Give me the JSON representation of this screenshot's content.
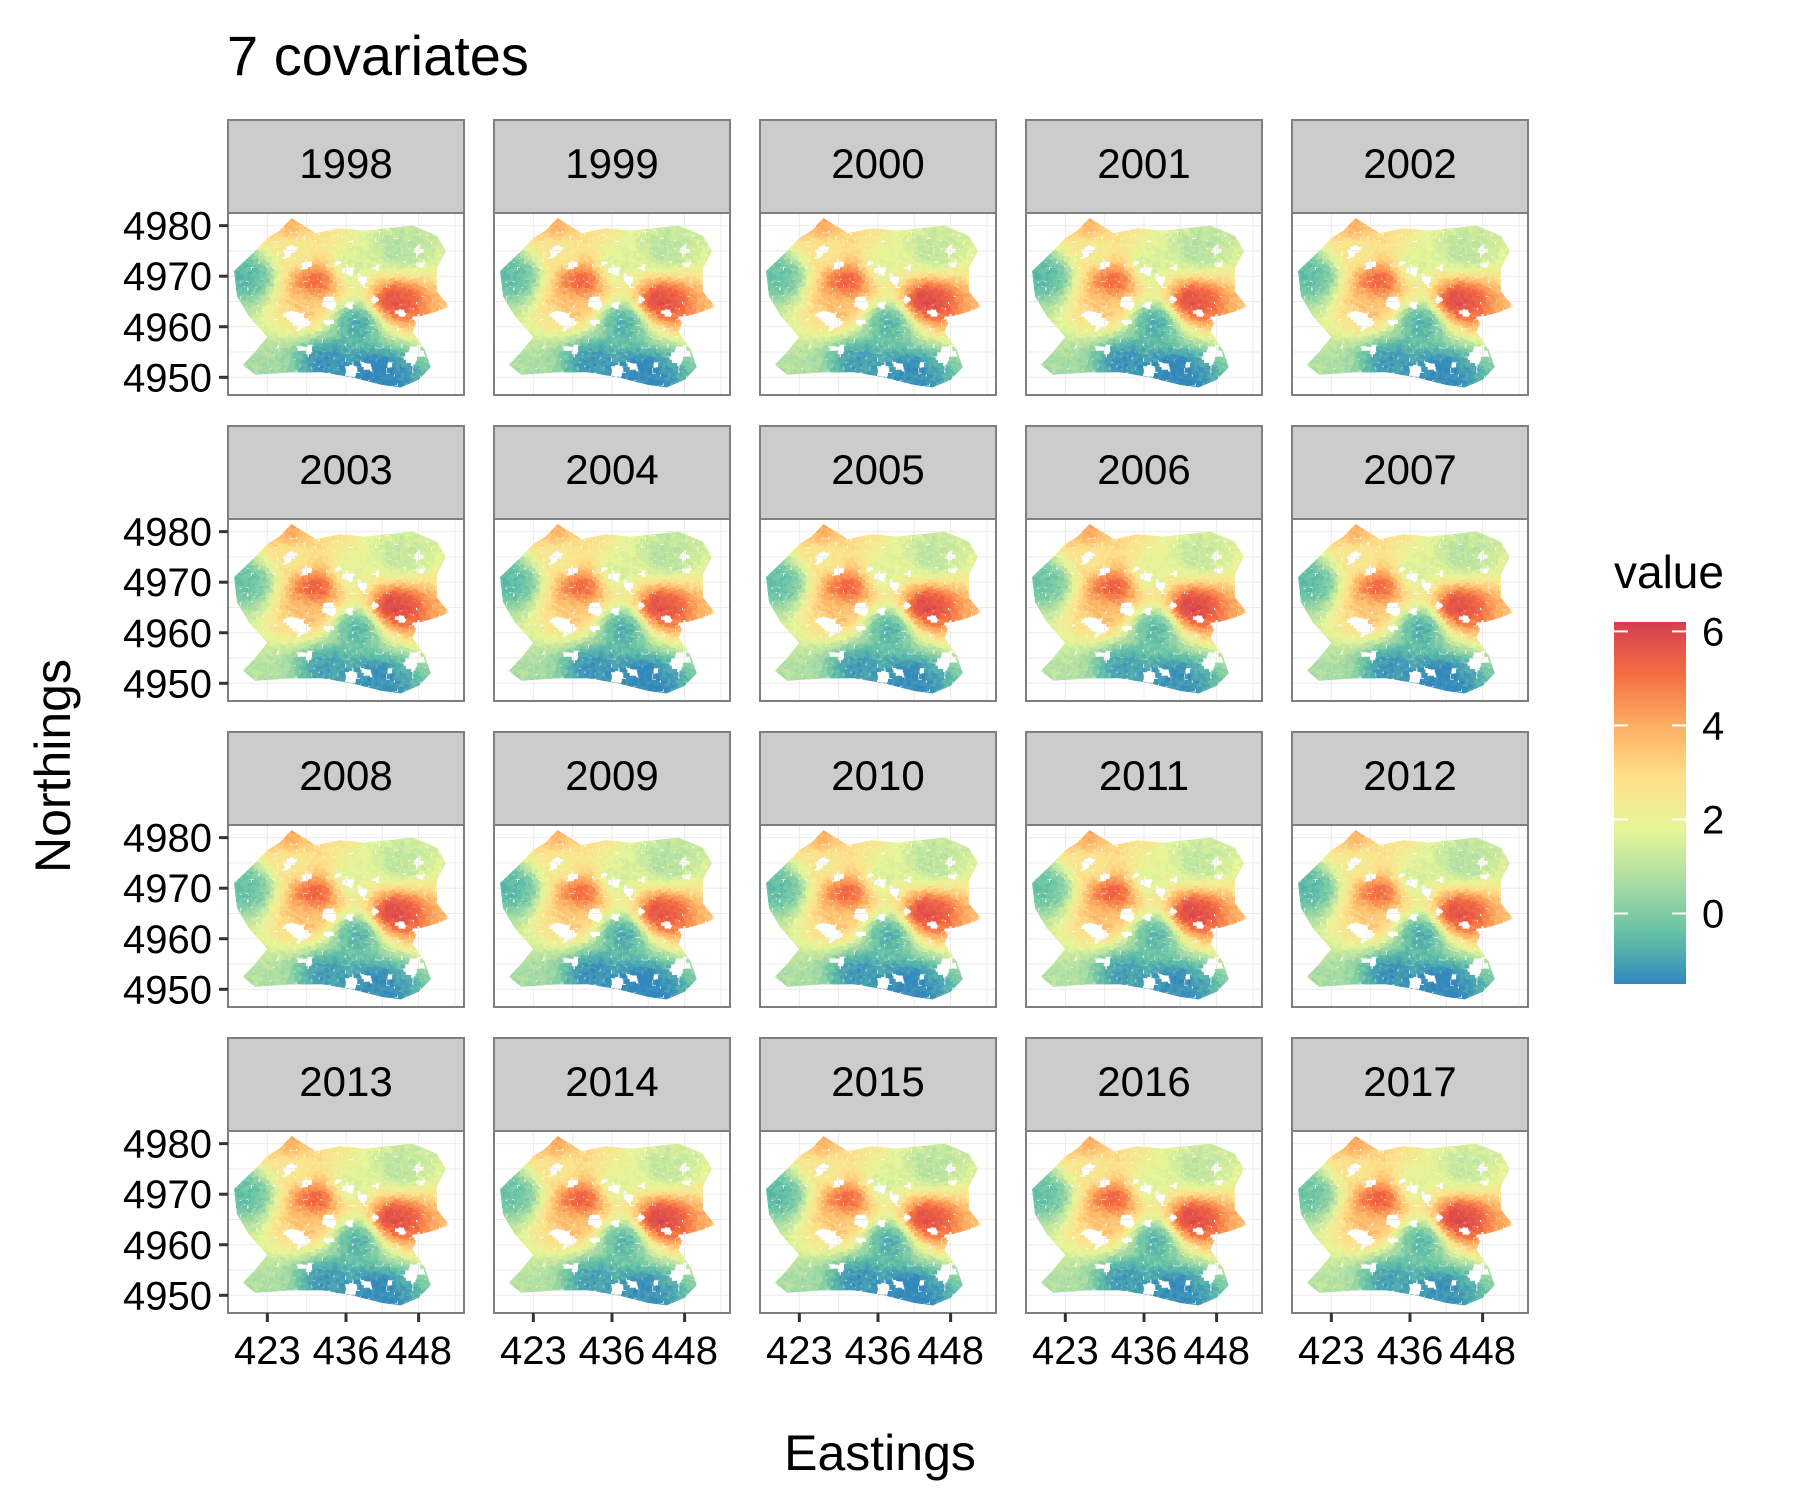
{
  "chart_data": {
    "type": "heatmap",
    "title": "7 covariates",
    "xlabel": "Eastings",
    "ylabel": "Northings",
    "facets": [
      "1998",
      "1999",
      "2000",
      "2001",
      "2002",
      "2003",
      "2004",
      "2005",
      "2006",
      "2007",
      "2008",
      "2009",
      "2010",
      "2011",
      "2012",
      "2013",
      "2014",
      "2015",
      "2016",
      "2017"
    ],
    "facet_layout": {
      "rows": 4,
      "cols": 5
    },
    "x_ticks": [
      423,
      436,
      448
    ],
    "x_tick_labels": [
      "423",
      "436",
      "448"
    ],
    "y_ticks": [
      4950,
      4960,
      4970,
      4980
    ],
    "y_tick_labels": [
      "4950",
      "4960",
      "4970",
      "4980"
    ],
    "xlim": [
      416.5,
      455.5
    ],
    "ylim": [
      4946.5,
      4982.5
    ],
    "grid": true,
    "legend": {
      "title": "value",
      "position": "right",
      "range": [
        -1.5,
        6.2
      ],
      "ticks": [
        0,
        2,
        4,
        6
      ],
      "tick_labels": [
        "0",
        "2",
        "4",
        "6"
      ],
      "colors": [
        "#3288bd",
        "#66c2a5",
        "#abdda4",
        "#e6f598",
        "#fee08b",
        "#fdae61",
        "#f46d43",
        "#d53e4f"
      ]
    },
    "field_hotspots": [
      {
        "x": 431,
        "y": 4969,
        "value": 5.5
      },
      {
        "x": 444,
        "y": 4965,
        "value": 6.0
      },
      {
        "x": 430,
        "y": 4964,
        "value": 3.5
      },
      {
        "x": 427,
        "y": 4981,
        "value": 4.0
      },
      {
        "x": 428,
        "y": 4975,
        "value": 2.5
      },
      {
        "x": 437,
        "y": 4972,
        "value": 1.5
      },
      {
        "x": 445,
        "y": 4975,
        "value": 1.0
      },
      {
        "x": 441,
        "y": 4951,
        "value": -1.5
      },
      {
        "x": 433,
        "y": 4953,
        "value": -1.2
      },
      {
        "x": 438,
        "y": 4961,
        "value": -0.8
      },
      {
        "x": 420,
        "y": 4970,
        "value": -0.5
      },
      {
        "x": 423,
        "y": 4949,
        "value": 0.8
      }
    ]
  }
}
